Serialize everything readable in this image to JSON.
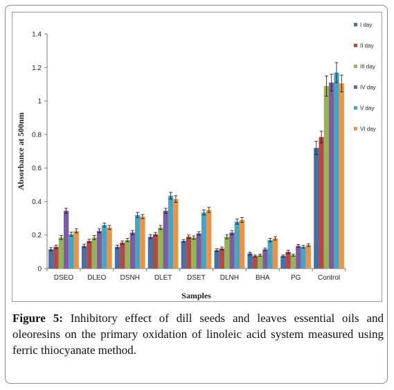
{
  "caption": {
    "label": "Figure 5:",
    "text": "Inhibitory effect of dill seeds and leaves essential oils and oleoresins on the primary oxidation of linoleic acid system measured using ferric thiocyanate method."
  },
  "chart_data": {
    "type": "bar",
    "title": "",
    "xlabel": "Samples",
    "ylabel": "Absorbance at 500nm",
    "ylim": [
      0,
      1.4
    ],
    "yticks": [
      "0",
      "0.2",
      "0.4",
      "0.6",
      "0.8",
      "1",
      "1.2",
      "1.4"
    ],
    "grid": false,
    "legend_position": "right",
    "categories": [
      "DSEO",
      "DLEO",
      "DSNH",
      "DLET",
      "DSET",
      "DLNH",
      "BHA",
      "PG",
      "Control"
    ],
    "series": [
      {
        "name": "I day",
        "color": "#4a6fa5",
        "values": [
          0.115,
          0.135,
          0.13,
          0.19,
          0.165,
          0.11,
          0.09,
          0.075,
          0.72
        ],
        "errors": [
          0.01,
          0.01,
          0.01,
          0.012,
          0.008,
          0.008,
          0.008,
          0.006,
          0.04
        ]
      },
      {
        "name": "II day",
        "color": "#b04a47",
        "values": [
          0.13,
          0.165,
          0.155,
          0.205,
          0.19,
          0.12,
          0.075,
          0.1,
          0.785
        ],
        "errors": [
          0.01,
          0.01,
          0.01,
          0.01,
          0.01,
          0.008,
          0.006,
          0.01,
          0.035
        ]
      },
      {
        "name": "III day",
        "color": "#96b457",
        "values": [
          0.185,
          0.185,
          0.17,
          0.245,
          0.185,
          0.19,
          0.08,
          0.08,
          1.09
        ],
        "errors": [
          0.012,
          0.012,
          0.01,
          0.012,
          0.01,
          0.012,
          0.006,
          0.006,
          0.06
        ]
      },
      {
        "name": "IV day",
        "color": "#7c5c9e",
        "values": [
          0.345,
          0.225,
          0.215,
          0.345,
          0.21,
          0.215,
          0.115,
          0.135,
          1.11
        ],
        "errors": [
          0.015,
          0.012,
          0.012,
          0.015,
          0.01,
          0.012,
          0.008,
          0.008,
          0.05
        ]
      },
      {
        "name": "V day",
        "color": "#4aa3bf",
        "values": [
          0.205,
          0.26,
          0.32,
          0.435,
          0.335,
          0.28,
          0.17,
          0.13,
          1.17
        ],
        "errors": [
          0.012,
          0.012,
          0.015,
          0.02,
          0.015,
          0.015,
          0.01,
          0.008,
          0.06
        ]
      },
      {
        "name": "VI day",
        "color": "#e8954a",
        "values": [
          0.225,
          0.245,
          0.31,
          0.415,
          0.35,
          0.29,
          0.18,
          0.14,
          1.105
        ],
        "errors": [
          0.012,
          0.012,
          0.012,
          0.02,
          0.015,
          0.015,
          0.01,
          0.008,
          0.05
        ]
      }
    ]
  }
}
